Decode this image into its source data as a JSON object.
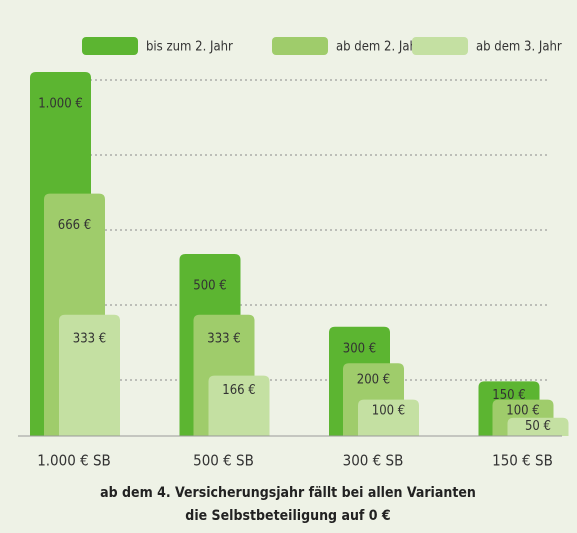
{
  "chart_data": {
    "type": "bar",
    "categories": [
      "1.000 € SB",
      "500 € SB",
      "300 € SB",
      "150 € SB"
    ],
    "series": [
      {
        "name": "bis zum 2. Jahr",
        "color": "#5cb531",
        "values": [
          1000,
          500,
          300,
          150
        ],
        "value_labels": [
          "1.000 €",
          "500 €",
          "300 €",
          "150 €"
        ]
      },
      {
        "name": "ab dem 2. Jahr",
        "color": "#9fcc6b",
        "values": [
          666,
          333,
          200,
          100
        ],
        "value_labels": [
          "666 €",
          "333 €",
          "200 €",
          "100 €"
        ]
      },
      {
        "name": "ab dem 3. Jahr",
        "color": "#c4e0a2",
        "values": [
          333,
          166,
          100,
          50
        ],
        "value_labels": [
          "333 €",
          "166 €",
          "100 €",
          "50 €"
        ]
      }
    ],
    "ylim": [
      0,
      1000
    ],
    "footnote": [
      "ab dem 4. Versicherungsjahr fällt bei allen Varianten",
      "die Selbstbeteiligung auf 0 €"
    ]
  }
}
